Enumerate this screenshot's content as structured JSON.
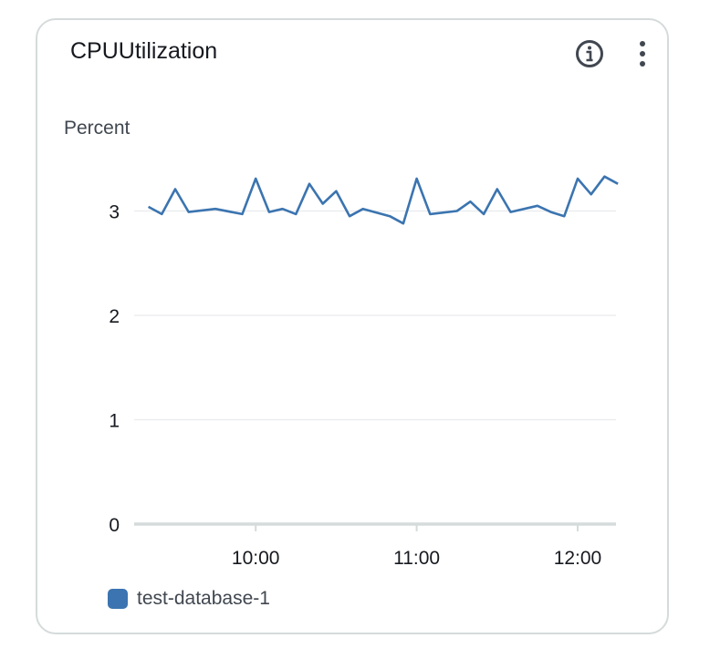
{
  "widget": {
    "title": "CPUUtilization",
    "info_icon": "info-circle-icon",
    "menu_icon": "vertical-ellipsis-icon"
  },
  "chart_data": {
    "type": "line",
    "title": "CPUUtilization",
    "ylabel": "Percent",
    "xlabel": "",
    "ylim": [
      0,
      3.5
    ],
    "yticks": [
      "0",
      "1",
      "2",
      "3"
    ],
    "xticks": [
      "10:00",
      "11:00",
      "12:00"
    ],
    "grid": true,
    "legend_position": "bottom-left",
    "series": [
      {
        "name": "test-database-1",
        "color": "#3b74b0",
        "points": [
          [
            "09:20",
            3.04
          ],
          [
            "09:25",
            2.97
          ],
          [
            "09:30",
            3.21
          ],
          [
            "09:35",
            2.99
          ],
          [
            "09:45",
            3.02
          ],
          [
            "09:55",
            2.97
          ],
          [
            "10:00",
            3.31
          ],
          [
            "10:05",
            2.99
          ],
          [
            "10:10",
            3.02
          ],
          [
            "10:15",
            2.97
          ],
          [
            "10:20",
            3.26
          ],
          [
            "10:25",
            3.07
          ],
          [
            "10:30",
            3.19
          ],
          [
            "10:35",
            2.95
          ],
          [
            "10:40",
            3.02
          ],
          [
            "10:50",
            2.95
          ],
          [
            "10:55",
            2.88
          ],
          [
            "11:00",
            3.31
          ],
          [
            "11:05",
            2.97
          ],
          [
            "11:15",
            3.0
          ],
          [
            "11:20",
            3.09
          ],
          [
            "11:25",
            2.97
          ],
          [
            "11:30",
            3.21
          ],
          [
            "11:35",
            2.99
          ],
          [
            "11:45",
            3.05
          ],
          [
            "11:50",
            2.99
          ],
          [
            "11:55",
            2.95
          ],
          [
            "12:00",
            3.31
          ],
          [
            "12:05",
            3.16
          ],
          [
            "12:10",
            3.33
          ],
          [
            "12:15",
            3.26
          ]
        ]
      }
    ]
  }
}
